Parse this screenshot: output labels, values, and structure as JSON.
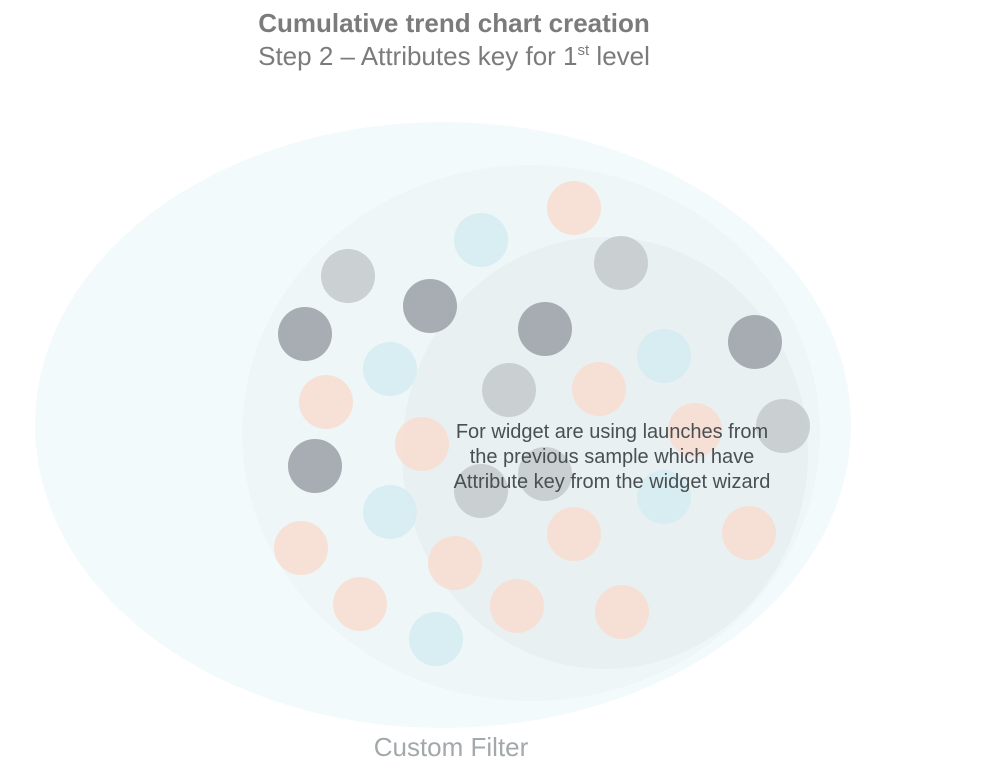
{
  "header": {
    "title": "Cumulative trend chart creation",
    "subtitle_main": "Step 2 – Attributes key for 1",
    "subtitle_sup": "st",
    "subtitle_end": " level"
  },
  "diagram": {
    "caption_lines": [
      "For widget are using launches from",
      "the previous sample which have",
      "Attribute key from the widget wizard"
    ],
    "footer_label": "Custom Filter",
    "colors": {
      "outer_ellipse": "#f3fafc",
      "middle_ellipse": "#eef6f8",
      "inner_ellipse": "#e9f0f2",
      "dark_gray": "#9aa0a6",
      "light_gray": "#c4cacd",
      "light_blue": "#d3ecf2",
      "peach": "#f8ddd0"
    },
    "dot_groups": [
      "dark_gray",
      "light_gray",
      "light_blue",
      "peach"
    ]
  }
}
